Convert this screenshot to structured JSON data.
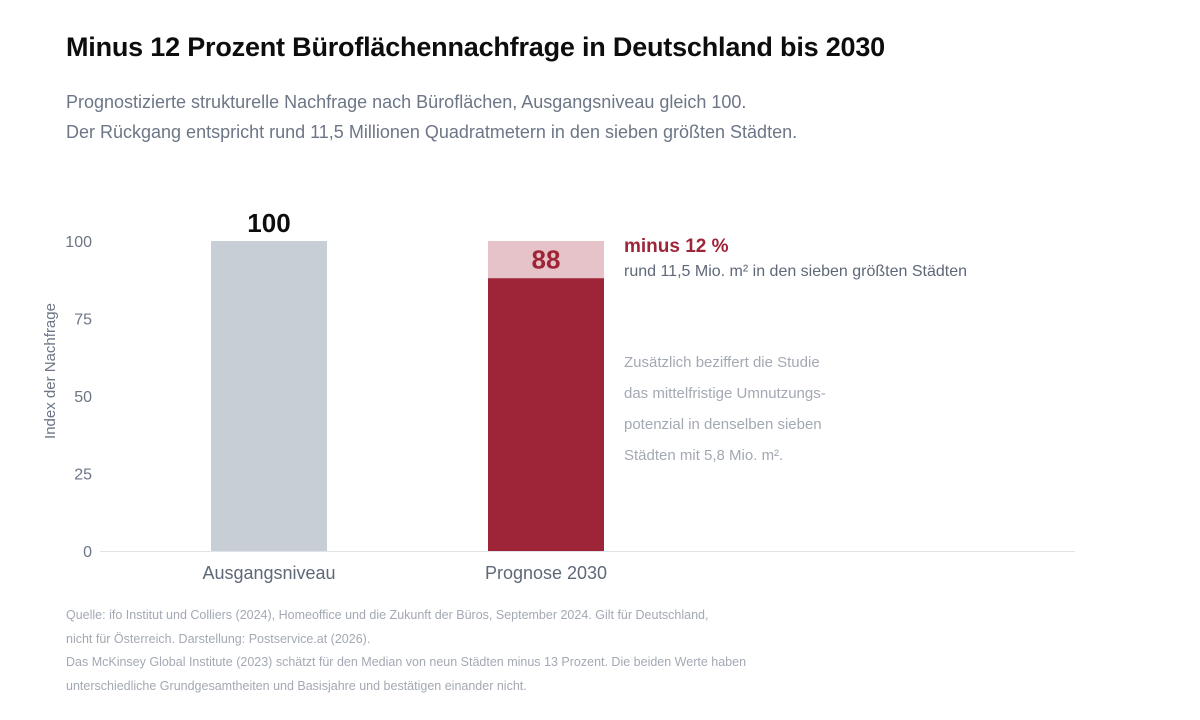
{
  "title": "Minus 12 Prozent Büroflächennachfrage in Deutschland bis 2030",
  "subtitle_lines": [
    "Prognostizierte strukturelle Nachfrage nach Büroflächen, Ausgangsniveau gleich 100.",
    "Der Rückgang entspricht rund 11,5 Millionen Quadratmetern in den sieben größten Städten."
  ],
  "chart_data": {
    "type": "bar",
    "categories": [
      "Ausgangsniveau",
      "Prognose 2030"
    ],
    "values": [
      100,
      88
    ],
    "data_labels": [
      "100",
      "88"
    ],
    "reference_value": 100,
    "ylabel": "Index der Nachfrage",
    "ylim": [
      0,
      100
    ],
    "yticks": [
      "0",
      "25",
      "50",
      "75",
      "100"
    ],
    "grid": false,
    "colors": {
      "baseline": "#c8ced5",
      "forecast": "#9e2437",
      "decline": "#e5c3c8",
      "axis": "#e0e3e7"
    },
    "annotation": {
      "headline": "minus 12 %",
      "detail": "rund 11,5 Mio. m² in den sieben größten Städten",
      "note_lines": [
        "Zusätzlich beziffert die Studie",
        "das mittelfristige Umnutzungs-",
        "potenzial in denselben sieben",
        "Städten mit 5,8 Mio. m²."
      ]
    }
  },
  "footer_lines": [
    "Quelle: ifo Institut und Colliers (2024), Homeoffice und die Zukunft der Büros, September 2024. Gilt für Deutschland,",
    "nicht für Österreich. Darstellung: Postservice.at (2026).",
    "Das McKinsey Global Institute (2023) schätzt für den Median von neun Städten minus 13 Prozent. Die beiden Werte haben",
    "unterschiedliche Grundgesamtheiten und Basisjahre und bestätigen einander nicht."
  ]
}
